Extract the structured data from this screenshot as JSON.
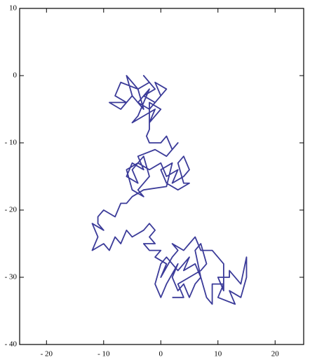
{
  "chart_data": {
    "type": "line",
    "x": [
      -5,
      -6,
      -4,
      -7,
      -8,
      -6,
      -9,
      -7,
      -5,
      -3,
      -4,
      -2,
      -3,
      -1,
      -3,
      -1,
      1,
      -1,
      0,
      -2,
      -4,
      -2,
      -4,
      -5,
      -3,
      -1,
      -2,
      0,
      -2,
      -2,
      -2,
      -2.5,
      -2,
      0,
      1,
      2,
      3,
      1,
      -1,
      -4,
      -3,
      -5,
      -6,
      -4,
      -5,
      -3,
      -2,
      -4,
      -3,
      -5,
      -6,
      -4,
      -2,
      0,
      1,
      3,
      2,
      4,
      5,
      4,
      3,
      4,
      5,
      3,
      1,
      0,
      2,
      1,
      -3,
      -5,
      -6,
      -7,
      -8,
      -10,
      -11,
      -11,
      -10,
      -12,
      -11,
      -12,
      -10,
      -9,
      -8,
      -7,
      -6,
      -5,
      -3,
      -2,
      -1,
      -2,
      -1,
      -3,
      -2,
      0,
      -1,
      1,
      0,
      2,
      3,
      2,
      4,
      5,
      6,
      7,
      9,
      11,
      11,
      10,
      12,
      12,
      14,
      15,
      15,
      14,
      12,
      13,
      10,
      11,
      9,
      9,
      8,
      7,
      6,
      5,
      4,
      3,
      2,
      3,
      1,
      0,
      -1,
      0,
      1,
      3,
      5,
      4,
      6,
      7,
      6,
      7,
      8,
      7,
      5,
      3,
      4,
      2
    ],
    "series": [
      {
        "color": "#3b3b99",
        "values": [
          -3,
          0,
          -2,
          -1,
          -3,
          -4,
          -4,
          -5,
          -3,
          -5,
          -2,
          -1,
          0,
          -2,
          -3,
          -4,
          -2,
          -1,
          -3,
          -5,
          -4,
          -2,
          -6,
          -7,
          -6,
          -5,
          -7,
          -5,
          -4,
          -6.5,
          -8,
          -9,
          -10,
          -10,
          -9,
          -11,
          -10,
          -12,
          -11,
          -12,
          -14,
          -13,
          -15,
          -16,
          -14,
          -12,
          -15,
          -17,
          -18,
          -17,
          -14,
          -13,
          -14,
          -13,
          -15,
          -14,
          -16,
          -15,
          -14,
          -12,
          -13,
          -16,
          -16,
          -17,
          -16,
          -14,
          -13,
          -16.5,
          -17,
          -18,
          -19,
          -19,
          -21,
          -20,
          -21,
          -22,
          -23,
          -22,
          -24,
          -26,
          -25,
          -26,
          -24,
          -25,
          -23,
          -24,
          -23,
          -22,
          -23,
          -24,
          -25,
          -25,
          -26,
          -26,
          -27,
          -28,
          -30,
          -27,
          -26,
          -25,
          -26,
          -25,
          -24,
          -26,
          -26,
          -28,
          -32,
          -30,
          -30,
          -29,
          -31,
          -27,
          -30,
          -33,
          -32,
          -34,
          -33,
          -31,
          -31,
          -34,
          -33,
          -30,
          -31,
          -33,
          -31,
          -32,
          -30,
          -28,
          -31,
          -33,
          -31,
          -28,
          -27,
          -29,
          -27,
          -29,
          -28,
          -30,
          -26,
          -25,
          -28,
          -29,
          -30,
          -31,
          -33,
          -33
        ]
      }
    ],
    "xlim": [
      -24.7,
      25
    ],
    "ylim": [
      -40,
      10
    ],
    "xticks": [
      {
        "value": -20,
        "label": "- 20"
      },
      {
        "value": -10,
        "label": "- 10"
      },
      0,
      10,
      20
    ],
    "yticks": [
      {
        "value": -40,
        "label": "- 40"
      },
      {
        "value": -30,
        "label": "- 30"
      },
      {
        "value": -20,
        "label": "- 20"
      },
      {
        "value": -10,
        "label": "- 10"
      },
      0,
      10
    ]
  }
}
